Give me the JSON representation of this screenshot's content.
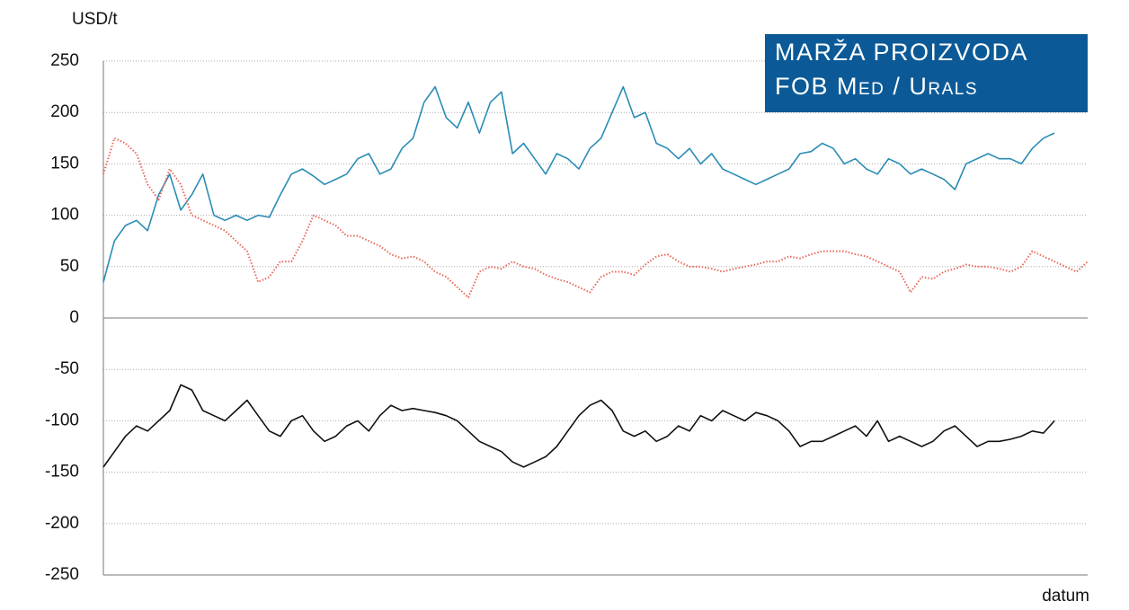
{
  "chart_data": {
    "type": "line",
    "title": [
      "MARŽA PROIZVODA",
      "FOB Med / Urals"
    ],
    "y_axis_label": "USD/t",
    "x_axis_label": "datum",
    "ylim": [
      -250,
      250
    ],
    "yticks": [
      -250,
      -200,
      -150,
      -100,
      -50,
      0,
      50,
      100,
      150,
      200,
      250
    ],
    "grid": true,
    "title_box_color": "#0b5a97",
    "series": [
      {
        "color": "#2a8cb5",
        "dashed": false,
        "values": [
          35,
          75,
          90,
          95,
          85,
          120,
          140,
          105,
          120,
          140,
          100,
          95,
          100,
          95,
          100,
          98,
          120,
          140,
          145,
          138,
          130,
          135,
          140,
          155,
          160,
          140,
          145,
          165,
          175,
          210,
          225,
          195,
          185,
          210,
          180,
          210,
          220,
          160,
          170,
          155,
          140,
          160,
          155,
          145,
          165,
          175,
          200,
          225,
          195,
          200,
          170,
          165,
          155,
          165,
          150,
          160,
          145,
          140,
          135,
          130,
          135,
          140,
          145,
          160,
          162,
          170,
          165,
          150,
          155,
          145,
          140,
          155,
          150,
          140,
          145,
          140,
          135,
          125,
          150,
          155,
          160,
          155,
          155,
          150,
          165,
          175,
          180,
          null,
          null,
          null
        ]
      },
      {
        "color": "#e8685a",
        "dashed": true,
        "values": [
          140,
          175,
          170,
          160,
          130,
          115,
          145,
          130,
          100,
          95,
          90,
          85,
          75,
          65,
          35,
          40,
          55,
          55,
          75,
          100,
          95,
          90,
          80,
          80,
          75,
          70,
          62,
          58,
          60,
          55,
          45,
          40,
          30,
          20,
          45,
          50,
          48,
          55,
          50,
          48,
          42,
          38,
          35,
          30,
          25,
          40,
          45,
          45,
          42,
          52,
          60,
          62,
          55,
          50,
          50,
          48,
          45,
          48,
          50,
          52,
          55,
          55,
          60,
          58,
          62,
          65,
          65,
          65,
          62,
          60,
          55,
          50,
          45,
          25,
          40,
          38,
          45,
          48,
          52,
          50,
          50,
          48,
          45,
          50,
          65,
          60,
          55,
          50,
          45,
          55
        ]
      },
      {
        "color": "#111111",
        "dashed": false,
        "values": [
          -145,
          -130,
          -115,
          -105,
          -110,
          -100,
          -90,
          -65,
          -70,
          -90,
          -95,
          -100,
          -90,
          -80,
          -95,
          -110,
          -115,
          -100,
          -95,
          -110,
          -120,
          -115,
          -105,
          -100,
          -110,
          -95,
          -85,
          -90,
          -88,
          -90,
          -92,
          -95,
          -100,
          -110,
          -120,
          -125,
          -130,
          -140,
          -145,
          -140,
          -135,
          -125,
          -110,
          -95,
          -85,
          -80,
          -90,
          -110,
          -115,
          -110,
          -120,
          -115,
          -105,
          -110,
          -95,
          -100,
          -90,
          -95,
          -100,
          -92,
          -95,
          -100,
          -110,
          -125,
          -120,
          -120,
          -115,
          -110,
          -105,
          -115,
          -100,
          -120,
          -115,
          -120,
          -125,
          -120,
          -110,
          -105,
          -115,
          -125,
          -120,
          -120,
          -118,
          -115,
          -110,
          -112,
          -100,
          null,
          null,
          null
        ]
      }
    ]
  }
}
